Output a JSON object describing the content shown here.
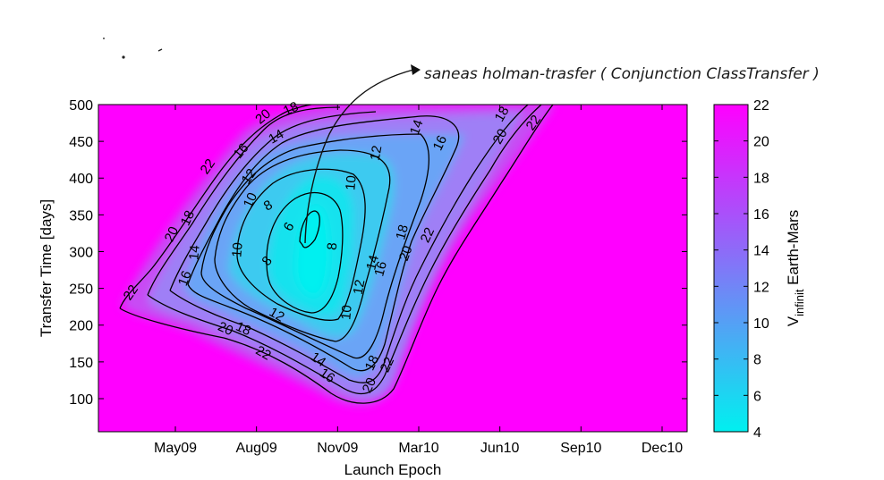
{
  "chart_data": {
    "type": "contour",
    "xlabel": "Launch Epoch",
    "ylabel": "Transfer Time [days]",
    "x_ticks": [
      "May09",
      "Aug09",
      "Nov09",
      "Mar10",
      "Jun10",
      "Sep10",
      "Dec10"
    ],
    "y_ticks": [
      100,
      150,
      200,
      250,
      300,
      350,
      400,
      450,
      500
    ],
    "ylim": [
      55,
      500
    ],
    "colorbar": {
      "label_main": "V",
      "label_sub": "infinit",
      "label_rest": " Earth-Mars",
      "ticks": [
        4,
        6,
        8,
        10,
        12,
        14,
        16,
        18,
        20,
        22
      ],
      "range": [
        4,
        22
      ],
      "colors": [
        "#00f0f0",
        "#ff00ff"
      ]
    },
    "minimum": {
      "launch": "Nov09 (approx.)",
      "transfer_days": 310,
      "value": 4.5
    },
    "contour_levels": [
      6,
      8,
      10,
      12,
      14,
      16,
      18,
      20,
      22
    ],
    "grid": false,
    "annotation": "saneas holman-trasfer ( Conjunction ClassTransfer )",
    "handwritten_marks": ". ."
  },
  "colors": {
    "low": "#00f0f0",
    "high": "#ff00ff",
    "background": "#ff00ff",
    "lines": "#000000"
  }
}
